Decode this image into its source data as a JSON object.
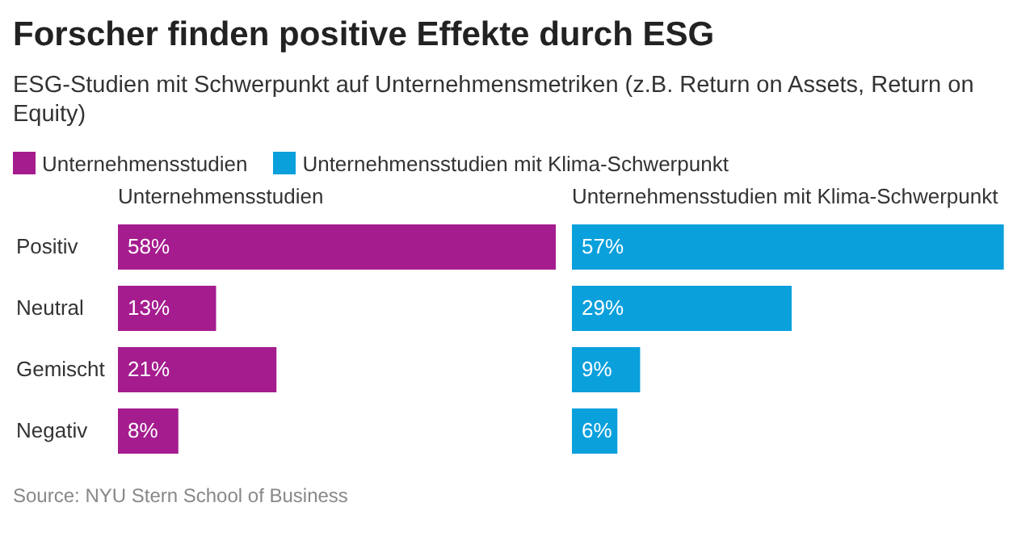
{
  "chart_data": [
    {
      "type": "bar",
      "orientation": "horizontal",
      "title": "Forscher finden positive Effekte durch ESG",
      "subtitle": "ESG-Studien mit Schwerpunkt auf Unternehmensmetriken (z.B. Return on Assets, Return on Equity)",
      "legend": "top left",
      "annotations": [
        "Source: NYU Stern School of Business"
      ],
      "categories": [
        "Positiv",
        "Neutral",
        "Gemischt",
        "Negativ"
      ],
      "series": [
        {
          "name": "Unternehmensstudien",
          "color": "#a51c8f",
          "values": [
            58,
            13,
            21,
            8
          ],
          "value_labels": [
            "58%",
            "13%",
            "21%",
            "8%"
          ]
        }
      ]
    },
    {
      "type": "bar",
      "orientation": "horizontal",
      "legend": "top left",
      "tick_labels": false,
      "series": [
        {
          "name": "Unternehmensstudien mit Klima-Schwerpunkt",
          "color": "#0aa0dc",
          "values": [
            57,
            29,
            9,
            6
          ],
          "value_labels": [
            "57%",
            "29%",
            "9%",
            "6%"
          ]
        }
      ]
    }
  ]
}
